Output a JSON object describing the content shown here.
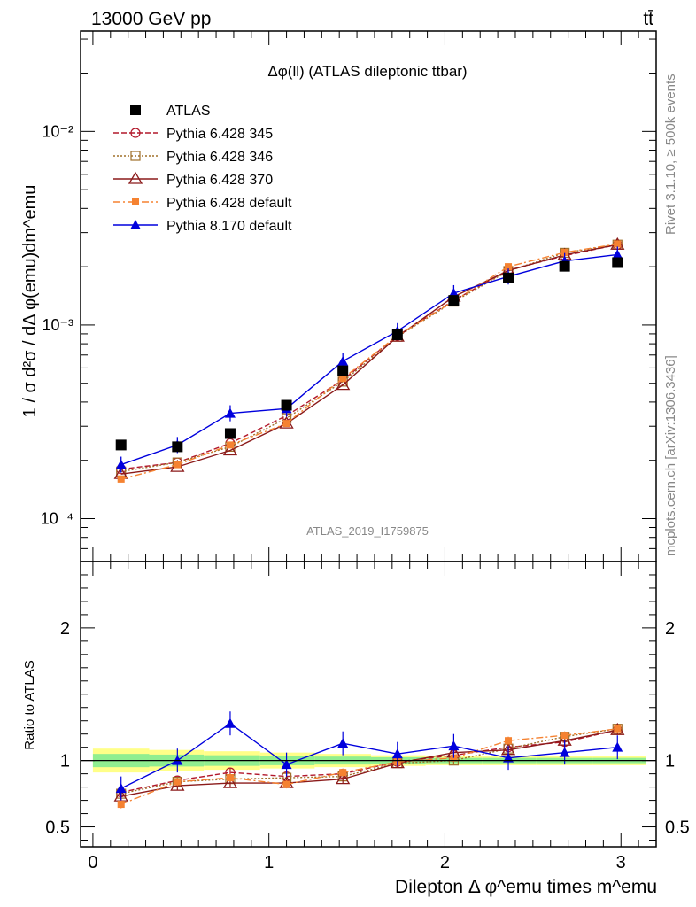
{
  "header": {
    "left": "13000 GeV pp",
    "right": "tt̄"
  },
  "side_labels": {
    "rivet": "Rivet 3.1.10, ≥ 500k events",
    "mcplots": "mcplots.cern.ch [arXiv:1306.3436]"
  },
  "chart_data": [
    {
      "type": "line",
      "panel": "main",
      "title": "Δφ(ll) (ATLAS dileptonic ttbar)",
      "ylabel": "1 / σ  d²σ / dΔ φ(emu)dm^emu",
      "xlabel": "",
      "y_scale": "log",
      "ylim": [
        6e-05,
        0.033
      ],
      "xlim": [
        -0.07,
        3.2
      ],
      "yticks": [
        0.0001,
        0.001,
        0.01
      ],
      "ytick_labels": [
        "10⁻⁴",
        "10⁻³",
        "10⁻²"
      ],
      "watermark": "ATLAS_2019_I1759875",
      "legend_position": "top-left",
      "x": [
        0.16,
        0.48,
        0.78,
        1.1,
        1.42,
        1.73,
        2.05,
        2.36,
        2.68,
        2.98
      ],
      "series": [
        {
          "name": "ATLAS",
          "color": "#000000",
          "marker": "filled-square",
          "values": [
            0.00024,
            0.000235,
            0.000275,
            0.000385,
            0.00058,
            0.00089,
            0.00134,
            0.00175,
            0.00201,
            0.0021
          ]
        },
        {
          "name": "Pythia 6.428 345",
          "color": "#b2182b",
          "marker": "open-circle",
          "dash": "dashed",
          "values": [
            0.00018,
            0.000195,
            0.000245,
            0.00034,
            0.00052,
            0.00088,
            0.00134,
            0.00192,
            0.00228,
            0.0026
          ]
        },
        {
          "name": "Pythia 6.428 346",
          "color": "#a0702a",
          "marker": "open-square",
          "dash": "dotted",
          "values": [
            0.000175,
            0.000195,
            0.000235,
            0.00033,
            0.00051,
            0.00087,
            0.00132,
            0.0019,
            0.00236,
            0.0026
          ]
        },
        {
          "name": "Pythia 6.428 370",
          "color": "#8b1a1a",
          "marker": "open-triangle",
          "dash": "solid",
          "values": [
            0.00017,
            0.000185,
            0.000225,
            0.00031,
            0.00049,
            0.00087,
            0.0014,
            0.00191,
            0.0023,
            0.0026
          ]
        },
        {
          "name": "Pythia 6.428 default",
          "color": "#f58231",
          "marker": "filled-square-small",
          "dash": "dashdot",
          "values": [
            0.00016,
            0.00019,
            0.00024,
            0.00031,
            0.00053,
            0.00088,
            0.00133,
            0.002,
            0.00237,
            0.00262
          ]
        },
        {
          "name": "Pythia 8.170 default",
          "color": "#0000dd",
          "marker": "filled-triangle",
          "dash": "solid",
          "values": [
            0.00019,
            0.00024,
            0.00035,
            0.00037,
            0.00065,
            0.00093,
            0.00146,
            0.00178,
            0.00214,
            0.00231
          ]
        }
      ]
    },
    {
      "type": "line",
      "panel": "ratio",
      "ylabel": "Ratio to ATLAS",
      "xlabel": "Dilepton Δ φ^emu times m^emu",
      "ylim": [
        0.35,
        2.5
      ],
      "xlim": [
        -0.07,
        3.2
      ],
      "yticks": [
        0.5,
        1,
        2
      ],
      "ytick_labels": [
        "0.5",
        "1",
        "2"
      ],
      "xticks": [
        0,
        1,
        2,
        3
      ],
      "xtick_labels": [
        "0",
        "1",
        "2",
        "3"
      ],
      "band_color_inner": "#90ee90",
      "band_color_outer": "#ffff88",
      "x": [
        0.16,
        0.48,
        0.78,
        1.1,
        1.42,
        1.73,
        2.05,
        2.36,
        2.68,
        2.98
      ],
      "series": [
        {
          "name": "Pythia 6.428 345",
          "values": [
            0.76,
            0.85,
            0.91,
            0.88,
            0.9,
            0.99,
            1.04,
            1.1,
            1.14,
            1.23
          ]
        },
        {
          "name": "Pythia 6.428 346",
          "values": [
            0.75,
            0.84,
            0.86,
            0.87,
            0.88,
            0.98,
            1.0,
            1.09,
            1.18,
            1.24
          ]
        },
        {
          "name": "Pythia 6.428 370",
          "values": [
            0.73,
            0.81,
            0.83,
            0.83,
            0.86,
            0.98,
            1.06,
            1.08,
            1.15,
            1.23
          ]
        },
        {
          "name": "Pythia 6.428 default",
          "values": [
            0.67,
            0.84,
            0.87,
            0.82,
            0.91,
            0.99,
            1.02,
            1.15,
            1.19,
            1.24
          ]
        },
        {
          "name": "Pythia 8.170 default",
          "values": [
            0.79,
            1.0,
            1.28,
            0.97,
            1.13,
            1.05,
            1.11,
            1.02,
            1.06,
            1.1
          ]
        }
      ]
    }
  ]
}
